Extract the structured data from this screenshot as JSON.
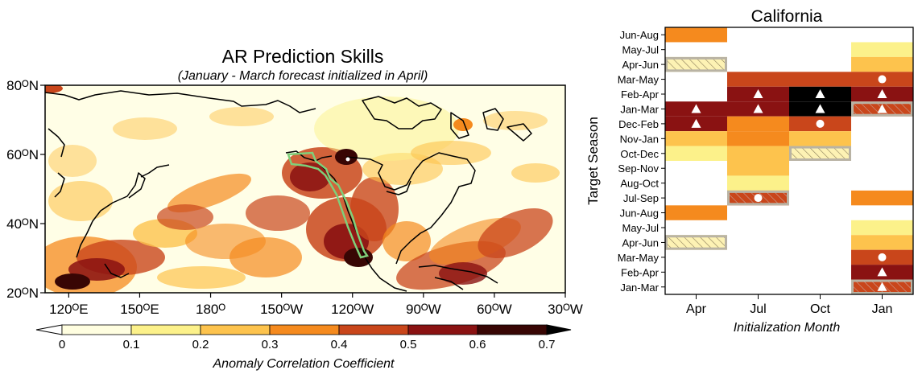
{
  "colors": {
    "bins": [
      "#fffee0",
      "#fcf18a",
      "#fdc34d",
      "#f58a1e",
      "#c9461b",
      "#8a1212",
      "#380604",
      "#000000"
    ],
    "land": "#000000",
    "highlight": "#7fcf7a",
    "hatch_fill": "#fdf2b4"
  },
  "map": {
    "title": "AR Prediction Skills",
    "subtitle": "(January - March forecast initialized in April)",
    "lat_ticks": [
      "80ᴼN",
      "60ᴼN",
      "40ᴼN",
      "20ᴼN"
    ],
    "lon_ticks": [
      "120ᴼE",
      "150ᴼE",
      "180ᴼ",
      "150ᴼW",
      "120ᴼW",
      "90ᴼW",
      "60ᴼW",
      "30ᴼW"
    ],
    "colorbar": {
      "label": "Anomaly Correlation Coefficient",
      "ticks": [
        "0",
        "0.1",
        "0.2",
        "0.3",
        "0.4",
        "0.5",
        "0.6",
        "0.7"
      ]
    }
  },
  "chart_data": {
    "type": "heatmap",
    "title": "California",
    "xlabel": "Initialization Month",
    "ylabel": "Target Season",
    "x_categories": [
      "Apr",
      "Jul",
      "Oct",
      "Jan"
    ],
    "y_categories": [
      "Jun-Aug",
      "May-Jul",
      "Apr-Jun",
      "Mar-May",
      "Feb-Apr",
      "Jan-Mar",
      "Dec-Feb",
      "Nov-Jan",
      "Oct-Dec",
      "Sep-Nov",
      "Aug-Oct",
      "Jul-Sep",
      "Jun-Aug",
      "May-Jul",
      "Apr-Jun",
      "Mar-May",
      "Feb-Apr",
      "Jan-Mar"
    ],
    "values": [
      [
        0.35,
        null,
        null,
        null
      ],
      [
        null,
        null,
        null,
        0.12
      ],
      [
        0.15,
        null,
        null,
        0.25
      ],
      [
        null,
        0.45,
        0.45,
        0.45
      ],
      [
        null,
        0.55,
        0.75,
        0.55
      ],
      [
        0.55,
        0.55,
        0.75,
        0.45
      ],
      [
        0.55,
        0.35,
        0.45,
        null
      ],
      [
        0.25,
        0.35,
        0.25,
        null
      ],
      [
        0.12,
        0.25,
        0.15,
        null
      ],
      [
        null,
        0.25,
        null,
        null
      ],
      [
        null,
        0.15,
        null,
        null
      ],
      [
        null,
        0.45,
        null,
        0.35
      ],
      [
        0.35,
        null,
        null,
        null
      ],
      [
        null,
        null,
        null,
        0.12
      ],
      [
        0.15,
        null,
        null,
        0.25
      ],
      [
        null,
        null,
        null,
        0.45
      ],
      [
        null,
        null,
        null,
        0.55
      ],
      [
        null,
        null,
        null,
        0.45
      ]
    ],
    "markers": [
      {
        "row": 3,
        "col": 3,
        "symbol": "circle"
      },
      {
        "row": 4,
        "col": 1,
        "symbol": "triangle"
      },
      {
        "row": 4,
        "col": 2,
        "symbol": "triangle"
      },
      {
        "row": 4,
        "col": 3,
        "symbol": "triangle"
      },
      {
        "row": 5,
        "col": 0,
        "symbol": "triangle"
      },
      {
        "row": 5,
        "col": 1,
        "symbol": "triangle"
      },
      {
        "row": 5,
        "col": 2,
        "symbol": "triangle"
      },
      {
        "row": 5,
        "col": 3,
        "symbol": "triangle"
      },
      {
        "row": 6,
        "col": 0,
        "symbol": "triangle"
      },
      {
        "row": 6,
        "col": 2,
        "symbol": "circle"
      },
      {
        "row": 11,
        "col": 1,
        "symbol": "circle"
      },
      {
        "row": 15,
        "col": 3,
        "symbol": "circle"
      },
      {
        "row": 16,
        "col": 3,
        "symbol": "triangle"
      },
      {
        "row": 17,
        "col": 3,
        "symbol": "triangle"
      }
    ],
    "hatched": [
      {
        "row": 2,
        "col": 0
      },
      {
        "row": 5,
        "col": 3
      },
      {
        "row": 8,
        "col": 2
      },
      {
        "row": 11,
        "col": 1
      },
      {
        "row": 14,
        "col": 0
      },
      {
        "row": 17,
        "col": 3
      }
    ]
  }
}
